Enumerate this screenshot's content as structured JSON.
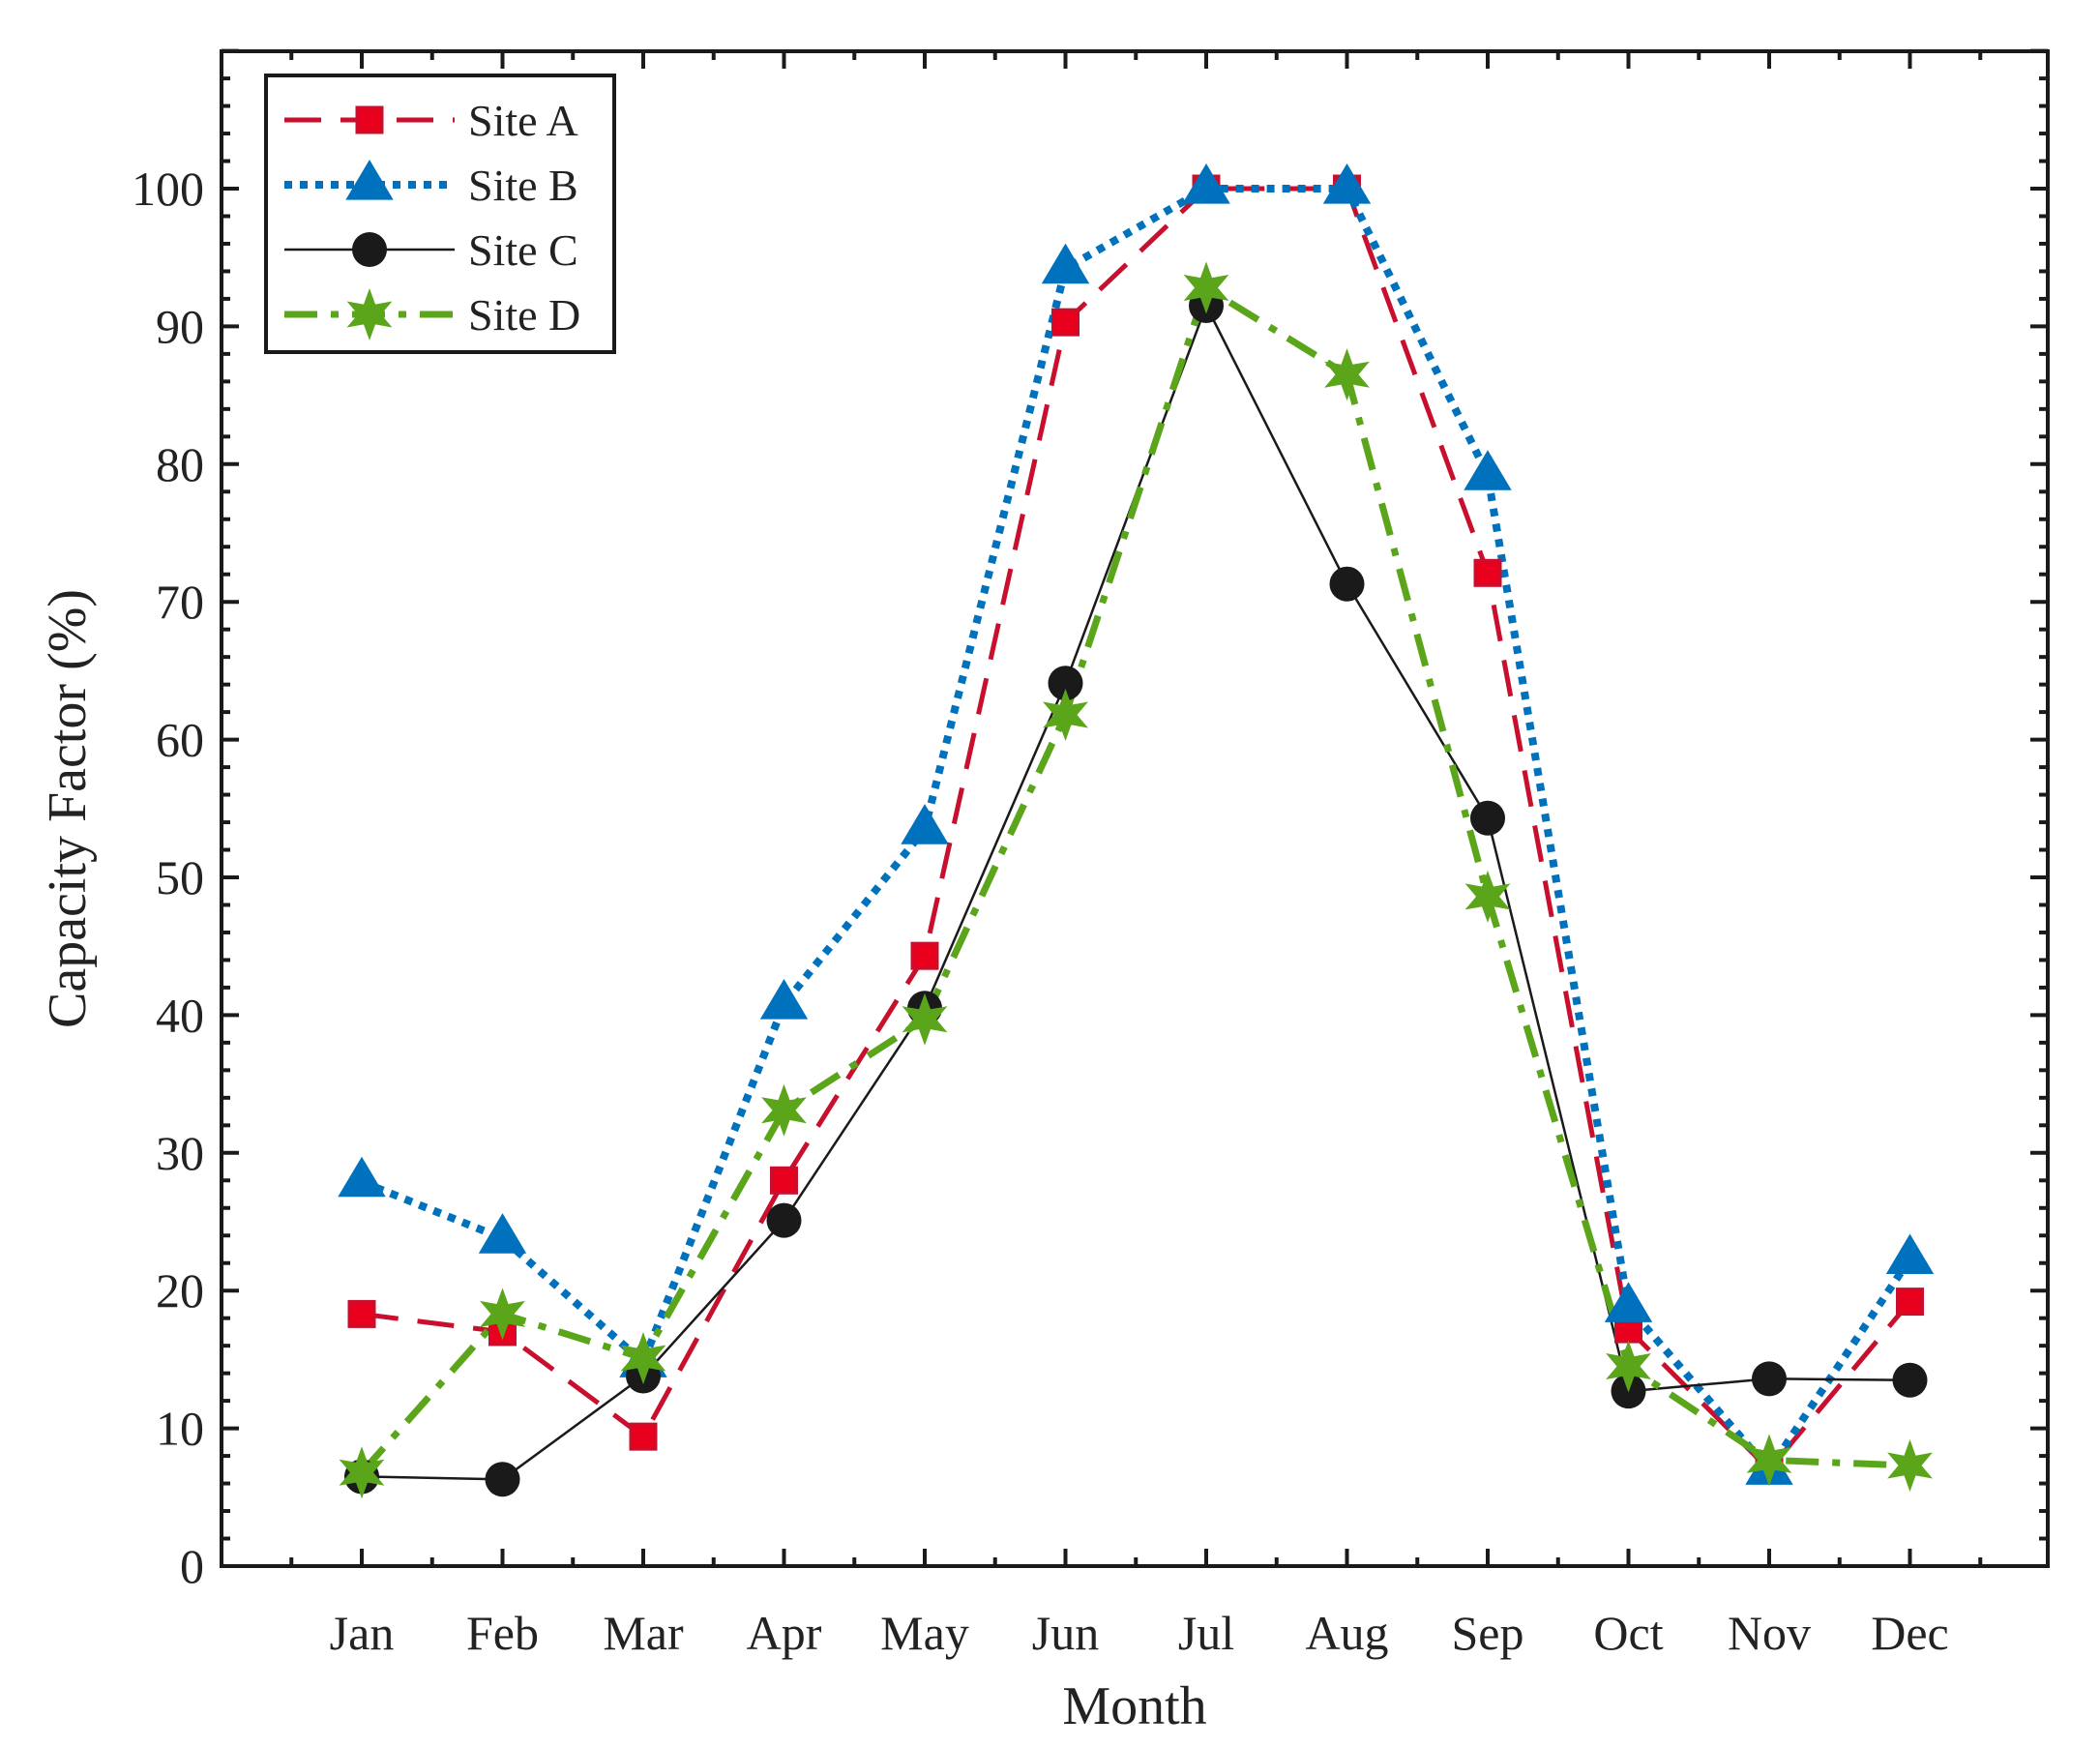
{
  "chart_data": {
    "type": "line",
    "title": "",
    "xlabel": "Month",
    "ylabel": "Capacity Factor (%)",
    "categories": [
      "Jan",
      "Feb",
      "Mar",
      "Apr",
      "May",
      "Jun",
      "Jul",
      "Aug",
      "Sep",
      "Oct",
      "Nov",
      "Dec"
    ],
    "ylim": [
      0,
      110
    ],
    "yticks": [
      0,
      10,
      20,
      30,
      40,
      50,
      60,
      70,
      80,
      90,
      100
    ],
    "ytick_labels": [
      "0",
      "10",
      "20",
      "30",
      "40",
      "50",
      "60",
      "70",
      "80",
      "90",
      "100"
    ],
    "grid": false,
    "legend_position": "top-left",
    "series": [
      {
        "name": "Site A",
        "color": "#c8102e",
        "line": "dashed",
        "marker": "square",
        "values": [
          18.3,
          17.0,
          9.4,
          28.0,
          44.3,
          90.3,
          100.0,
          100.0,
          72.1,
          17.2,
          7.0,
          19.2
        ]
      },
      {
        "name": "Site B",
        "color": "#0072bd",
        "line": "dotted",
        "marker": "triangle",
        "values": [
          27.9,
          23.8,
          14.8,
          40.8,
          53.5,
          94.2,
          100.0,
          100.0,
          79.2,
          18.8,
          7.0,
          22.3
        ]
      },
      {
        "name": "Site C",
        "color": "#1a1a1a",
        "line": "solid",
        "marker": "circle",
        "values": [
          6.5,
          6.3,
          13.8,
          25.1,
          40.5,
          64.1,
          91.5,
          71.3,
          54.3,
          12.7,
          13.6,
          13.5
        ]
      },
      {
        "name": "Site D",
        "color": "#5aa51a",
        "line": "dashdot",
        "marker": "star",
        "values": [
          6.8,
          18.3,
          15.1,
          33.1,
          39.7,
          61.8,
          92.8,
          86.5,
          48.6,
          14.5,
          7.7,
          7.3
        ]
      }
    ]
  }
}
